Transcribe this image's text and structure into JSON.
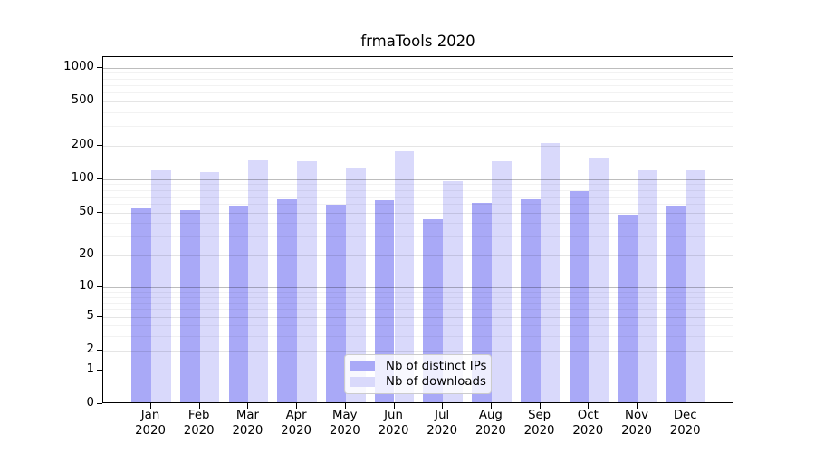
{
  "figure": {
    "title": "frmaTools 2020"
  },
  "chart_data": {
    "type": "bar",
    "title": "frmaTools 2020",
    "categories": [
      "Jan",
      "Feb",
      "Mar",
      "Apr",
      "May",
      "Jun",
      "Jul",
      "Aug",
      "Sep",
      "Oct",
      "Nov",
      "Dec"
    ],
    "x_year": "2020",
    "series": [
      {
        "name": "Nb of distinct IPs",
        "color": "#a9a9f7",
        "values": [
          53,
          51,
          56,
          63,
          57,
          62,
          42,
          59,
          64,
          75,
          46,
          56
        ]
      },
      {
        "name": "Nb of downloads",
        "color": "#d9d9fb",
        "values": [
          115,
          112,
          143,
          139,
          122,
          172,
          93,
          139,
          205,
          152,
          115,
          115
        ]
      }
    ],
    "xlabel": "",
    "ylabel": "",
    "y_scale": "log10(1+v)",
    "ylim": [
      0,
      1240
    ],
    "y_ticks": [
      0,
      1,
      2,
      5,
      10,
      20,
      50,
      100,
      200,
      500,
      1000
    ],
    "y_power_ticks": [
      1,
      10,
      100,
      1000
    ],
    "y_minor_ticks": [
      3,
      4,
      6,
      7,
      8,
      9,
      30,
      40,
      60,
      70,
      80,
      90,
      300,
      400,
      600,
      700,
      800,
      900
    ],
    "grid": true,
    "legend_position": "lower center"
  }
}
